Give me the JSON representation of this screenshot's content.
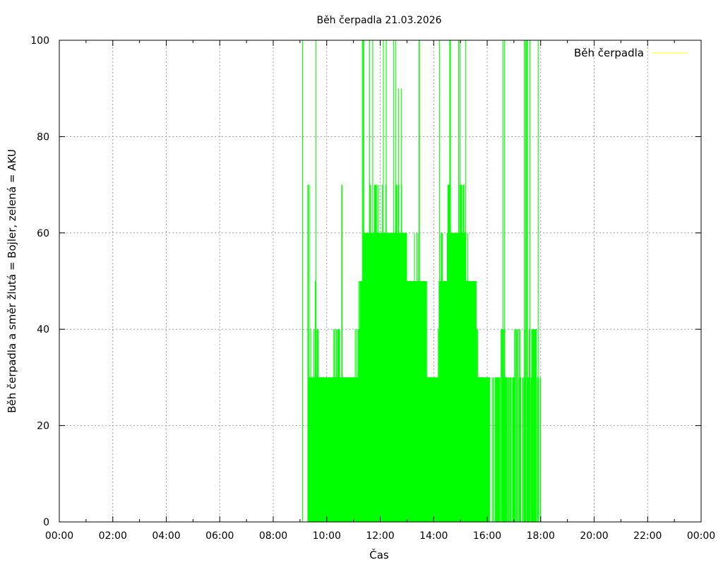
{
  "chart_data": {
    "type": "bar",
    "title": "Běh čerpadla 21.03.2026",
    "xlabel": "Čas",
    "ylabel": "Běh čerpadla a směr žlutá = Bojler, zelená = AKU",
    "xlim_hours": [
      0,
      24
    ],
    "ylim": [
      0,
      100
    ],
    "x_ticks": [
      "00:00",
      "02:00",
      "04:00",
      "06:00",
      "08:00",
      "10:00",
      "12:00",
      "14:00",
      "16:00",
      "18:00",
      "20:00",
      "22:00",
      "00:00"
    ],
    "y_ticks": [
      "0",
      "20",
      "40",
      "60",
      "80",
      "100"
    ],
    "grid": true,
    "legend": {
      "position": "top-right",
      "entries": [
        {
          "label": "Běh čerpadla",
          "color": "#ffff00"
        }
      ]
    },
    "series_color": "#00ff00",
    "envelope": [
      [
        "09:00",
        100
      ],
      [
        "09:15",
        70
      ],
      [
        "09:25",
        30
      ],
      [
        "09:30",
        50
      ],
      [
        "09:35",
        100
      ],
      [
        "09:45",
        30
      ],
      [
        "10:00",
        30
      ],
      [
        "10:15",
        40
      ],
      [
        "10:30",
        70
      ],
      [
        "10:40",
        30
      ],
      [
        "11:00",
        40
      ],
      [
        "11:15",
        50
      ],
      [
        "11:20",
        100
      ],
      [
        "11:25",
        60
      ],
      [
        "11:35",
        100
      ],
      [
        "11:45",
        70
      ],
      [
        "12:00",
        100
      ],
      [
        "12:15",
        60
      ],
      [
        "12:30",
        100
      ],
      [
        "12:40",
        90
      ],
      [
        "12:50",
        60
      ],
      [
        "13:00",
        50
      ],
      [
        "13:15",
        100
      ],
      [
        "13:30",
        50
      ],
      [
        "13:40",
        30
      ],
      [
        "14:00",
        30
      ],
      [
        "14:10",
        100
      ],
      [
        "14:20",
        50
      ],
      [
        "14:30",
        100
      ],
      [
        "14:40",
        60
      ],
      [
        "14:50",
        100
      ],
      [
        "15:00",
        70
      ],
      [
        "15:10",
        100
      ],
      [
        "15:20",
        50
      ],
      [
        "15:30",
        50
      ],
      [
        "15:40",
        30
      ],
      [
        "16:00",
        30
      ],
      [
        "16:10",
        30
      ],
      [
        "16:30",
        100
      ],
      [
        "16:40",
        30
      ],
      [
        "17:00",
        40
      ],
      [
        "17:15",
        100
      ],
      [
        "17:30",
        100
      ],
      [
        "17:40",
        40
      ],
      [
        "17:50",
        100
      ],
      [
        "17:55",
        30
      ],
      [
        "18:00",
        30
      ]
    ]
  }
}
